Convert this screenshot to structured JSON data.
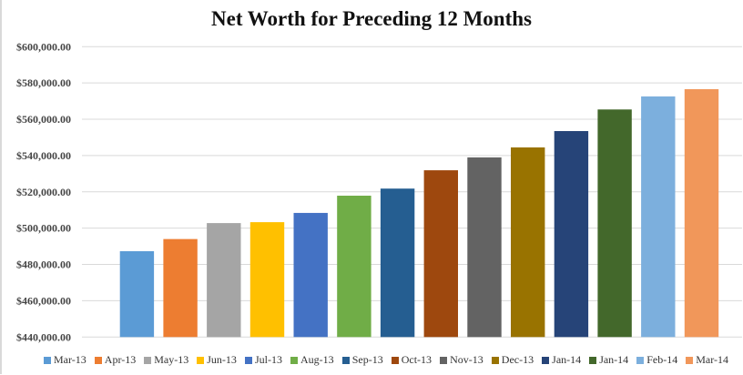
{
  "chart_data": {
    "type": "bar",
    "title": "Net Worth for Preceding 12 Months",
    "xlabel": "",
    "ylabel": "",
    "ylim": [
      440000,
      600000
    ],
    "yticks": [
      440000,
      460000,
      480000,
      500000,
      520000,
      540000,
      560000,
      580000,
      600000
    ],
    "ytick_labels": [
      "$440,000.00",
      "$460,000.00",
      "$480,000.00",
      "$500,000.00",
      "$520,000.00",
      "$540,000.00",
      "$560,000.00",
      "$580,000.00",
      "$600,000.00"
    ],
    "grid": true,
    "legend_position": "bottom",
    "categories": [
      "Mar-13",
      "Apr-13",
      "May-13",
      "Jun-13",
      "Jul-13",
      "Aug-13",
      "Sep-13",
      "Oct-13",
      "Nov-13",
      "Dec-13",
      "Jan-14",
      "Jan-14",
      "Feb-14",
      "Mar-14"
    ],
    "values": [
      487300,
      494000,
      502800,
      503300,
      508400,
      517900,
      521800,
      531900,
      539000,
      544500,
      553500,
      565400,
      572600,
      576600
    ],
    "colors": [
      "#5B9BD5",
      "#ED7D31",
      "#A5A5A5",
      "#FFC000",
      "#4472C4",
      "#70AD47",
      "#255E91",
      "#9E480E",
      "#636363",
      "#997300",
      "#264478",
      "#43682B",
      "#7CAFDD",
      "#F1975A"
    ]
  }
}
